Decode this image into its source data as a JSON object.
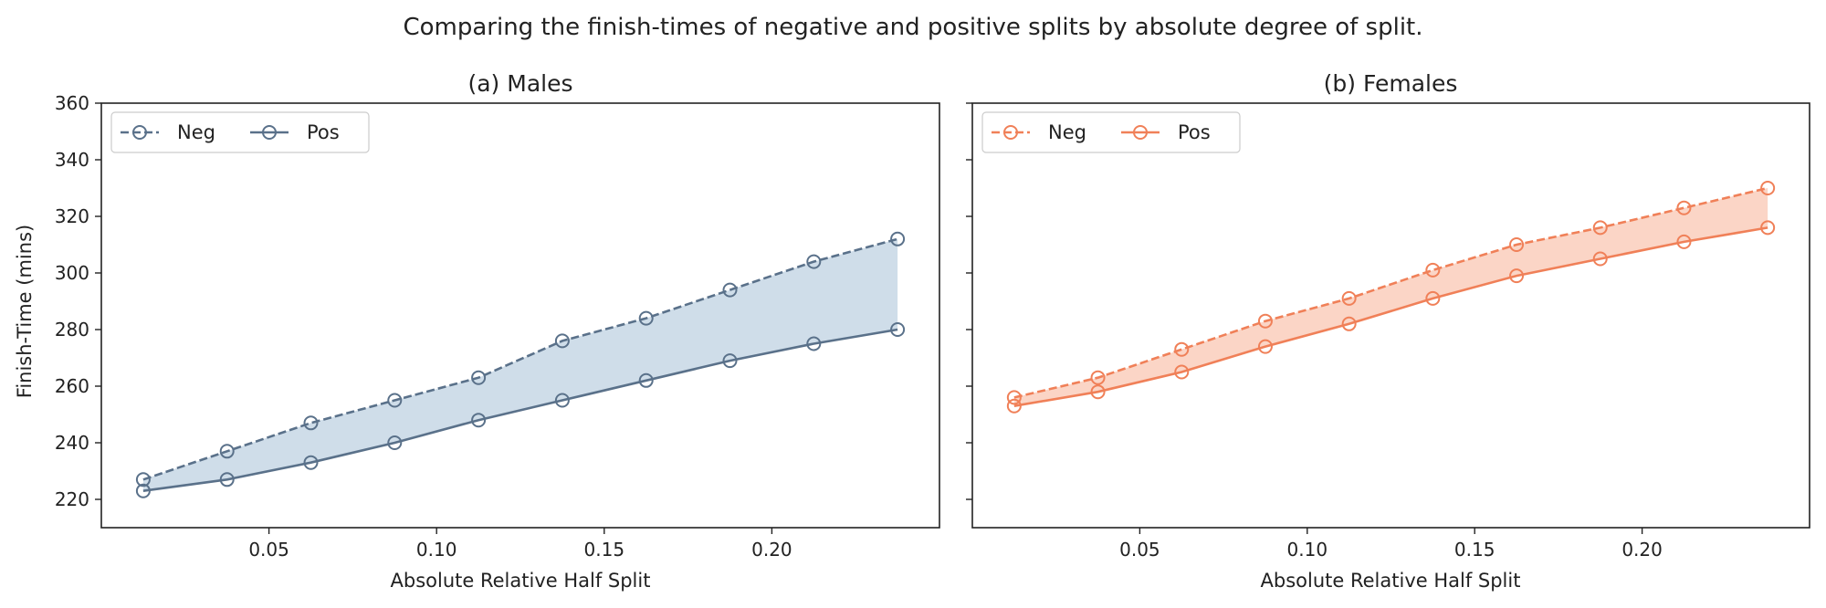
{
  "figure": {
    "title": "Comparing the finish-times of negative and positive splits by absolute degree of split."
  },
  "chart_data": [
    {
      "type": "line",
      "title": "(a) Males",
      "xlabel": "Absolute Relative Half Split",
      "ylabel": "Finish-Time (mins)",
      "xlim": [
        0.0,
        0.25
      ],
      "ylim": [
        210,
        360
      ],
      "xticks": [
        0.05,
        0.1,
        0.15,
        0.2
      ],
      "xtick_labels": [
        "0.05",
        "0.10",
        "0.15",
        "0.20"
      ],
      "yticks": [
        220,
        240,
        260,
        280,
        300,
        320,
        340,
        360
      ],
      "ytick_labels": [
        "220",
        "240",
        "260",
        "280",
        "300",
        "320",
        "340",
        "360"
      ],
      "legend_position": "top-left",
      "grid": false,
      "color": "#5a718a",
      "fill_color": "#cfdde9",
      "x": [
        0.0125,
        0.0375,
        0.0625,
        0.0875,
        0.1125,
        0.1375,
        0.1625,
        0.1875,
        0.2125,
        0.2375
      ],
      "series": [
        {
          "name": "Neg",
          "style": "dashed",
          "values": [
            227,
            237,
            247,
            255,
            263,
            276,
            284,
            294,
            304,
            312
          ]
        },
        {
          "name": "Pos",
          "style": "solid",
          "values": [
            223,
            227,
            233,
            240,
            248,
            255,
            262,
            269,
            275,
            280
          ]
        }
      ]
    },
    {
      "type": "line",
      "title": "(b) Females",
      "xlabel": "Absolute Relative Half Split",
      "ylabel": "",
      "xlim": [
        0.0,
        0.25
      ],
      "ylim": [
        210,
        360
      ],
      "xticks": [
        0.05,
        0.1,
        0.15,
        0.2
      ],
      "xtick_labels": [
        "0.05",
        "0.10",
        "0.15",
        "0.20"
      ],
      "yticks": [
        220,
        240,
        260,
        280,
        300,
        320,
        340,
        360
      ],
      "ytick_labels": [],
      "legend_position": "top-left",
      "grid": false,
      "color": "#f08058",
      "fill_color": "#fbd5c6",
      "x": [
        0.0125,
        0.0375,
        0.0625,
        0.0875,
        0.1125,
        0.1375,
        0.1625,
        0.1875,
        0.2125,
        0.2375
      ],
      "series": [
        {
          "name": "Neg",
          "style": "dashed",
          "values": [
            256,
            263,
            273,
            283,
            291,
            301,
            310,
            316,
            323,
            330
          ]
        },
        {
          "name": "Pos",
          "style": "solid",
          "values": [
            253,
            258,
            265,
            274,
            282,
            291,
            299,
            305,
            311,
            316
          ]
        }
      ]
    }
  ]
}
